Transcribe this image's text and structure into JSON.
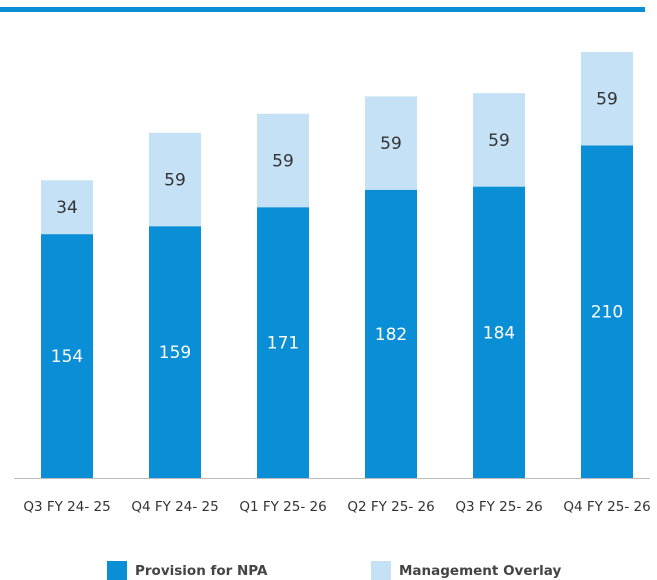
{
  "chart_data": {
    "type": "stacked_bar",
    "categories": [
      "Q3 FY 24- 25",
      "Q4 FY 24- 25",
      "Q1 FY 25- 26",
      "Q2 FY 25- 26",
      "Q3 FY 25- 26",
      "Q4 FY 25- 26"
    ],
    "series": [
      {
        "name": "Provision for NPA",
        "color": "#0a8fd6",
        "values": [
          154,
          159,
          171,
          182,
          184,
          210
        ]
      },
      {
        "name": "Management Overlay",
        "color": "#c5e1f5",
        "values": [
          34,
          59,
          59,
          59,
          59,
          59
        ]
      }
    ],
    "legend": "bottom"
  }
}
